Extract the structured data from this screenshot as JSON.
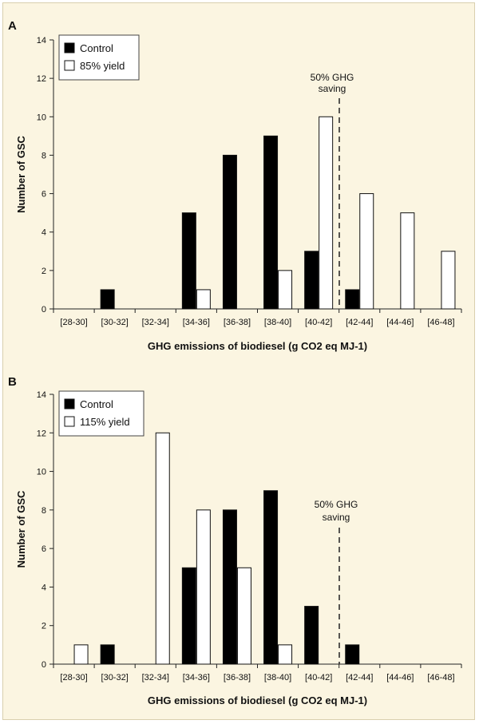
{
  "chart_data": [
    {
      "type": "bar",
      "panel_label": "A",
      "categories": [
        "[28-30]",
        "[30-32]",
        "[32-34]",
        "[34-36]",
        "[36-38]",
        "[38-40]",
        "[40-42]",
        "[42-44]",
        "[44-46]",
        "[46-48]"
      ],
      "series": [
        {
          "name": "Control",
          "fill": "#000000",
          "values": [
            0,
            1,
            0,
            5,
            8,
            9,
            3,
            1,
            0,
            0
          ]
        },
        {
          "name": "85% yield",
          "fill": "#ffffff",
          "values": [
            0,
            0,
            0,
            1,
            0,
            2,
            10,
            6,
            5,
            3
          ]
        }
      ],
      "xlabel": "GHG emissions of biodiesel (g CO2 eq MJ-1)",
      "ylabel": "Number of GSC",
      "ylim": [
        0,
        14
      ],
      "yticks": [
        "0",
        "2",
        "4",
        "6",
        "8",
        "10",
        "12",
        "14"
      ],
      "legend_position": "top-left",
      "threshold": {
        "x_value": 41.7,
        "label_line1": "50% GHG",
        "label_line2": "saving"
      }
    },
    {
      "type": "bar",
      "panel_label": "B",
      "categories": [
        "[28-30]",
        "[30-32]",
        "[32-34]",
        "[34-36]",
        "[36-38]",
        "[38-40]",
        "[40-42]",
        "[42-44]",
        "[44-46]",
        "[46-48]"
      ],
      "series": [
        {
          "name": "Control",
          "fill": "#000000",
          "values": [
            0,
            1,
            0,
            5,
            8,
            9,
            3,
            1,
            0,
            0
          ]
        },
        {
          "name": "115% yield",
          "fill": "#ffffff",
          "values": [
            1,
            0,
            12,
            8,
            5,
            1,
            0,
            0,
            0,
            0
          ]
        }
      ],
      "xlabel": "GHG emissions of biodiesel (g CO2 eq MJ-1)",
      "ylabel": "Number of GSC",
      "ylim": [
        0,
        14
      ],
      "yticks": [
        "0",
        "2",
        "4",
        "6",
        "8",
        "10",
        "12",
        "14"
      ],
      "legend_position": "top-left",
      "threshold": {
        "x_value": 41.7,
        "label_line1": "50% GHG",
        "label_line2": "saving"
      }
    }
  ]
}
